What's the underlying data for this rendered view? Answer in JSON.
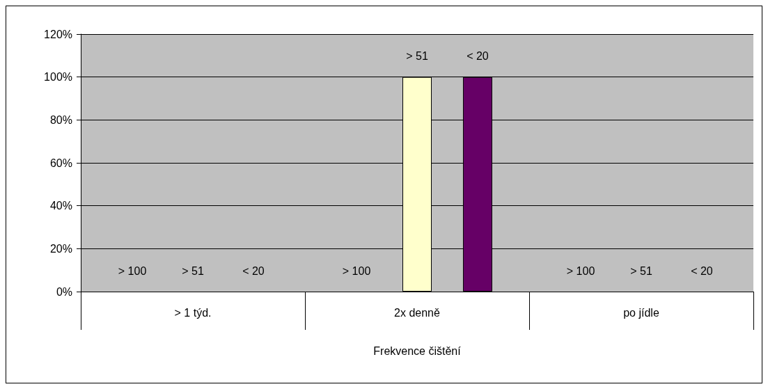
{
  "chart_data": {
    "type": "bar",
    "xlabel": "Frekvence čištění",
    "categories": [
      "> 1 týd.",
      "2x denně",
      "po jídle"
    ],
    "series": [
      {
        "name": "> 100",
        "values": [
          0,
          0,
          0
        ]
      },
      {
        "name": "> 51",
        "color": "#ffffcc",
        "values": [
          0,
          100,
          0
        ]
      },
      {
        "name": "< 20",
        "color": "#660066",
        "values": [
          0,
          100,
          0
        ]
      }
    ],
    "ylim": [
      0,
      120
    ],
    "yticks": [
      {
        "value": 0,
        "label": "0%"
      },
      {
        "value": 20,
        "label": "20%"
      },
      {
        "value": 40,
        "label": "40%"
      },
      {
        "value": 60,
        "label": "60%"
      },
      {
        "value": 80,
        "label": "80%"
      },
      {
        "value": 100,
        "label": "100%"
      },
      {
        "value": 120,
        "label": "120%"
      }
    ],
    "grid": "y"
  }
}
